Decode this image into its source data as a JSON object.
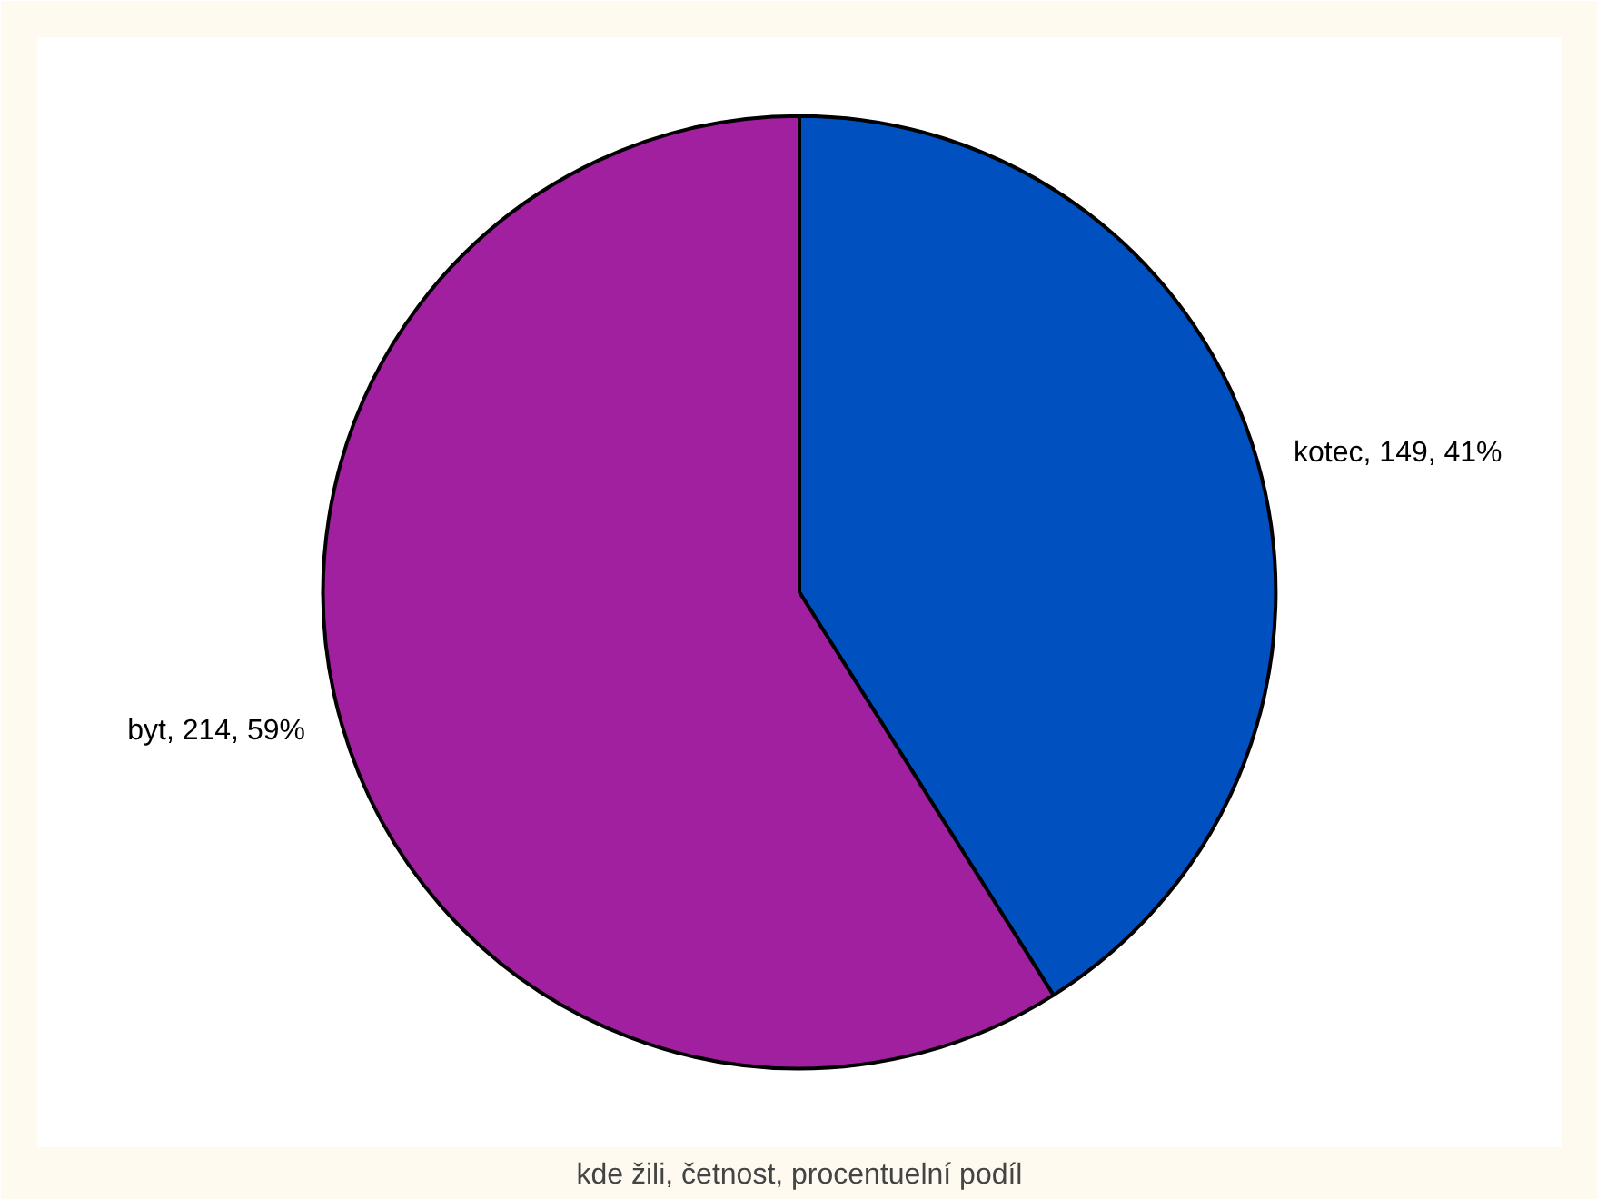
{
  "chart_data": {
    "type": "pie",
    "title": "kde žili, četnost, procentuelní podíl",
    "categories": [
      "kotec, 149, 41%",
      "byt, 214, 59%"
    ],
    "values": [
      149,
      214
    ],
    "colors": [
      "#0050c0",
      "#a020a0"
    ]
  }
}
